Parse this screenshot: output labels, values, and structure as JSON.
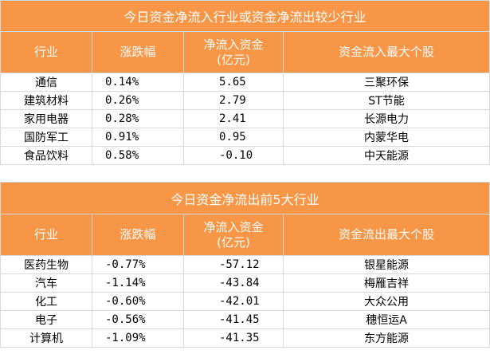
{
  "inflow": {
    "title": "今日资金净流入行业或资金净流出较少行业",
    "headers": [
      "行业",
      "涨跌幅",
      "净流入资金\n(亿元)",
      "资金流入最大个股"
    ],
    "rows": [
      {
        "industry": "通信",
        "change": "0.14%",
        "net": "5.65",
        "stock": "三聚环保"
      },
      {
        "industry": "建筑材料",
        "change": "0.26%",
        "net": "2.79",
        "stock": "ST节能"
      },
      {
        "industry": "家用电器",
        "change": "0.28%",
        "net": "2.41",
        "stock": "长源电力"
      },
      {
        "industry": "国防军工",
        "change": "0.91%",
        "net": "0.95",
        "stock": "内蒙华电"
      },
      {
        "industry": "食品饮料",
        "change": "0.58%",
        "net": "-0.10",
        "stock": "中天能源"
      }
    ]
  },
  "outflow": {
    "title": "今日资金净流出前5大行业",
    "headers": [
      "行业",
      "涨跌幅",
      "净流入资金\n(亿元)",
      "资金流出最大个股"
    ],
    "rows": [
      {
        "industry": "医药生物",
        "change": "-0.77%",
        "net": "-57.12",
        "stock": "银星能源"
      },
      {
        "industry": "汽车",
        "change": "-1.14%",
        "net": "-43.84",
        "stock": "梅雁吉祥"
      },
      {
        "industry": "化工",
        "change": "-0.60%",
        "net": "-42.01",
        "stock": "大众公用"
      },
      {
        "industry": "电子",
        "change": "-0.56%",
        "net": "-41.45",
        "stock": "穗恒运A"
      },
      {
        "industry": "计算机",
        "change": "-1.09%",
        "net": "-41.35",
        "stock": "东方能源"
      }
    ]
  }
}
